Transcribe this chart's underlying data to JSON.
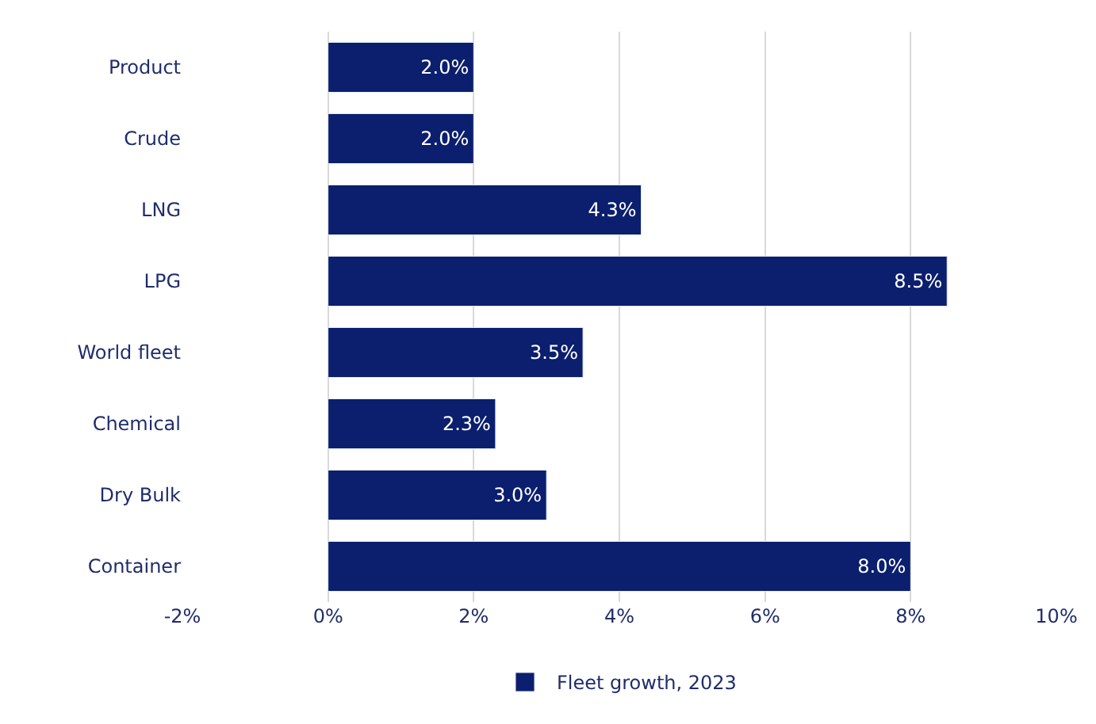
{
  "chart_data": {
    "type": "bar",
    "orientation": "horizontal",
    "categories": [
      "Product",
      "Crude",
      "LNG",
      "LPG",
      "World fleet",
      "Chemical",
      "Dry Bulk",
      "Container"
    ],
    "series": [
      {
        "name": "Fleet growth, 2023",
        "color": "#0b1f6e",
        "values": [
          2.0,
          2.0,
          4.3,
          8.5,
          3.5,
          2.3,
          3.0,
          8.0
        ],
        "value_labels": [
          "2.0%",
          "2.0%",
          "4.3%",
          "8.5%",
          "3.5%",
          "2.3%",
          "3.0%",
          "8.0%"
        ]
      }
    ],
    "xlim": [
      -2,
      10
    ],
    "xticks": [
      {
        "value": -2,
        "label": "-2%"
      },
      {
        "value": 0,
        "label": "0%"
      },
      {
        "value": 2,
        "label": "2%"
      },
      {
        "value": 4,
        "label": "4%"
      },
      {
        "value": 6,
        "label": "6%"
      },
      {
        "value": 8,
        "label": "8%"
      },
      {
        "value": 10,
        "label": "10%"
      }
    ],
    "grid": "x",
    "legend": "bottom"
  }
}
